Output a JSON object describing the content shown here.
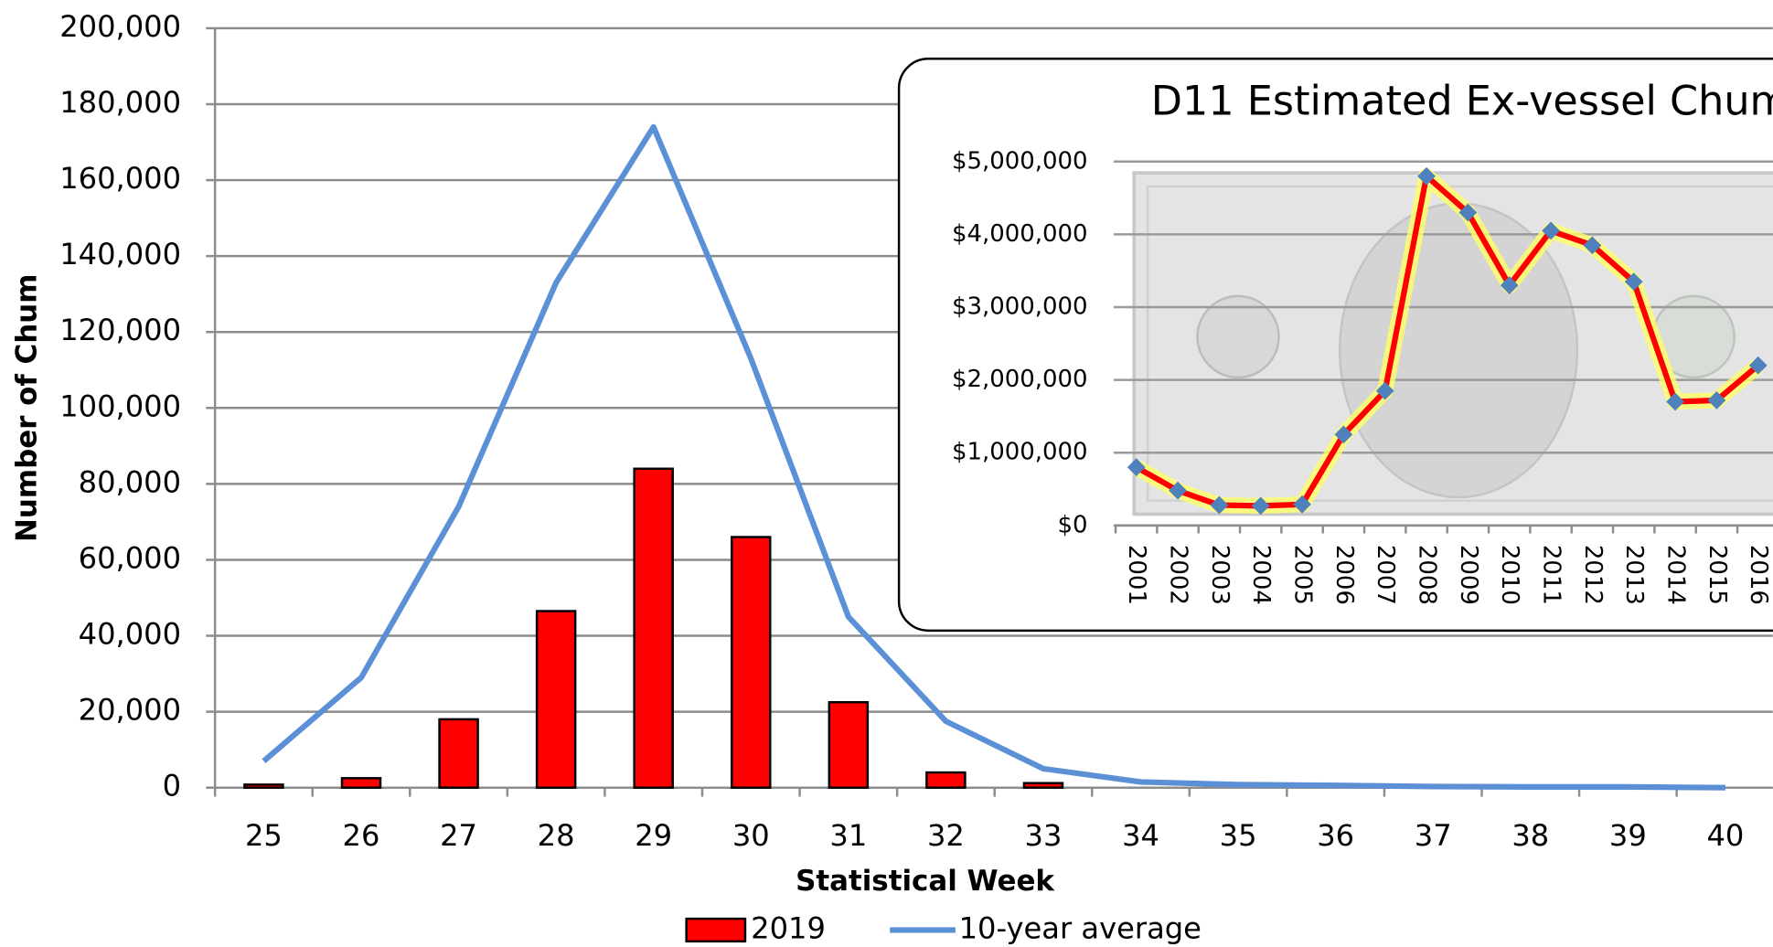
{
  "chart_data": [
    {
      "type": "combo",
      "y_label": "Number of Chum",
      "x_label": "Statistical Week",
      "categories": [
        "25",
        "26",
        "27",
        "28",
        "29",
        "30",
        "31",
        "32",
        "33",
        "34",
        "35",
        "36",
        "37",
        "38",
        "39",
        "40"
      ],
      "series": [
        {
          "name": "2019",
          "type": "bar",
          "color": "#ff0000",
          "values": [
            800,
            2500,
            18000,
            46500,
            84000,
            66000,
            22500,
            4000,
            1200,
            0,
            0,
            0,
            0,
            0,
            0,
            0
          ]
        },
        {
          "name": "10-year average",
          "type": "line",
          "color": "#5b8fd6",
          "values": [
            7000,
            29000,
            74000,
            133000,
            174000,
            113000,
            45000,
            17500,
            5000,
            1500,
            800,
            600,
            300,
            200,
            200,
            0
          ]
        }
      ],
      "ylim": [
        0,
        200000
      ],
      "yticks": [
        0,
        {
          "value": 20000,
          "label": "20,000"
        },
        {
          "value": 40000,
          "label": "40,000"
        },
        {
          "value": 60000,
          "label": "60,000"
        },
        {
          "value": 80000,
          "label": "80,000"
        },
        {
          "value": 100000,
          "label": "100,000"
        },
        {
          "value": 120000,
          "label": "120,000"
        },
        {
          "value": 140000,
          "label": "140,000"
        },
        {
          "value": 160000,
          "label": "160,000"
        },
        {
          "value": 180000,
          "label": "180,000"
        },
        {
          "value": 200000,
          "label": "200,000"
        }
      ],
      "grid": true
    },
    {
      "type": "line",
      "title": "D11 Estimated Ex-vessel Chum",
      "categories": [
        "2001",
        "2002",
        "2003",
        "2004",
        "2005",
        "2006",
        "2007",
        "2008",
        "2009",
        "2010",
        "2011",
        "2012",
        "2013",
        "2014",
        "2015",
        "2016"
      ],
      "series": [
        {
          "color": "#ff0000",
          "marker_color": "#4f81bd",
          "values": [
            800000,
            480000,
            280000,
            270000,
            290000,
            1250000,
            1850000,
            4800000,
            4300000,
            3300000,
            4050000,
            3850000,
            3350000,
            1700000,
            1720000,
            2200000
          ]
        }
      ],
      "ylim": [
        0,
        5000000
      ],
      "yticks": [
        {
          "value": 0,
          "label": "$0"
        },
        {
          "value": 1000000,
          "label": "$1,000,000"
        },
        {
          "value": 2000000,
          "label": "$2,000,000"
        },
        {
          "value": 3000000,
          "label": "$3,000,000"
        },
        {
          "value": 4000000,
          "label": "$4,000,000"
        },
        {
          "value": 5000000,
          "label": "$5,000,000"
        }
      ],
      "grid": true
    }
  ]
}
